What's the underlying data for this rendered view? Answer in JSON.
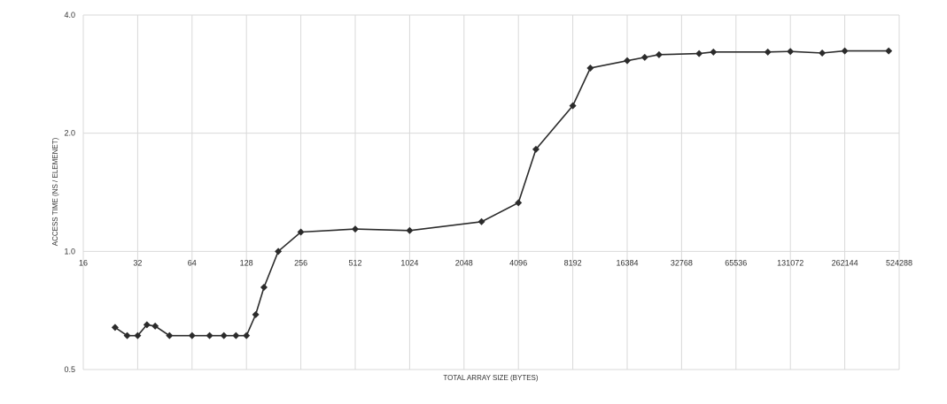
{
  "chart_data": {
    "type": "line",
    "title": "",
    "xlabel": "TOTAL ARRAY SIZE (BYTES)",
    "ylabel": "ACCESS TIME (NS / ELEMENET)",
    "xscale": "log2",
    "yscale": "log2",
    "xlim": [
      16,
      524288
    ],
    "ylim": [
      0.5,
      4.0
    ],
    "x_tick_labels": [
      "16",
      "32",
      "64",
      "128",
      "256",
      "512",
      "1024",
      "2048",
      "4096",
      "8192",
      "16384",
      "32768",
      "65536",
      "131072",
      "262144",
      "524288"
    ],
    "y_tick_labels": [
      "0.5",
      "1.0",
      "2.0",
      "4.0"
    ],
    "y_ticks": [
      0.5,
      1.0,
      2.0,
      4.0
    ],
    "x_axis_crosses_y_at": 1.0,
    "grid": "vertical and horizontal major gridlines",
    "legend": "none",
    "line_color": "#2b2b2b",
    "series": [
      {
        "marker": "diamond",
        "x": [
          24,
          28,
          32,
          36,
          40,
          48,
          64,
          80,
          96,
          112,
          128,
          144,
          160,
          192,
          256,
          512,
          1024,
          2560,
          4096,
          5120,
          8192,
          10240,
          16384,
          20480,
          24576,
          40960,
          49152,
          98304,
          131072,
          196608,
          262144,
          458752
        ],
        "values": [
          0.64,
          0.61,
          0.61,
          0.65,
          0.645,
          0.61,
          0.61,
          0.61,
          0.61,
          0.61,
          0.61,
          0.69,
          0.81,
          1.0,
          1.12,
          1.14,
          1.13,
          1.19,
          1.33,
          1.82,
          2.35,
          2.93,
          3.06,
          3.12,
          3.17,
          3.19,
          3.22,
          3.22,
          3.23,
          3.2,
          3.24,
          3.24
        ]
      }
    ]
  }
}
